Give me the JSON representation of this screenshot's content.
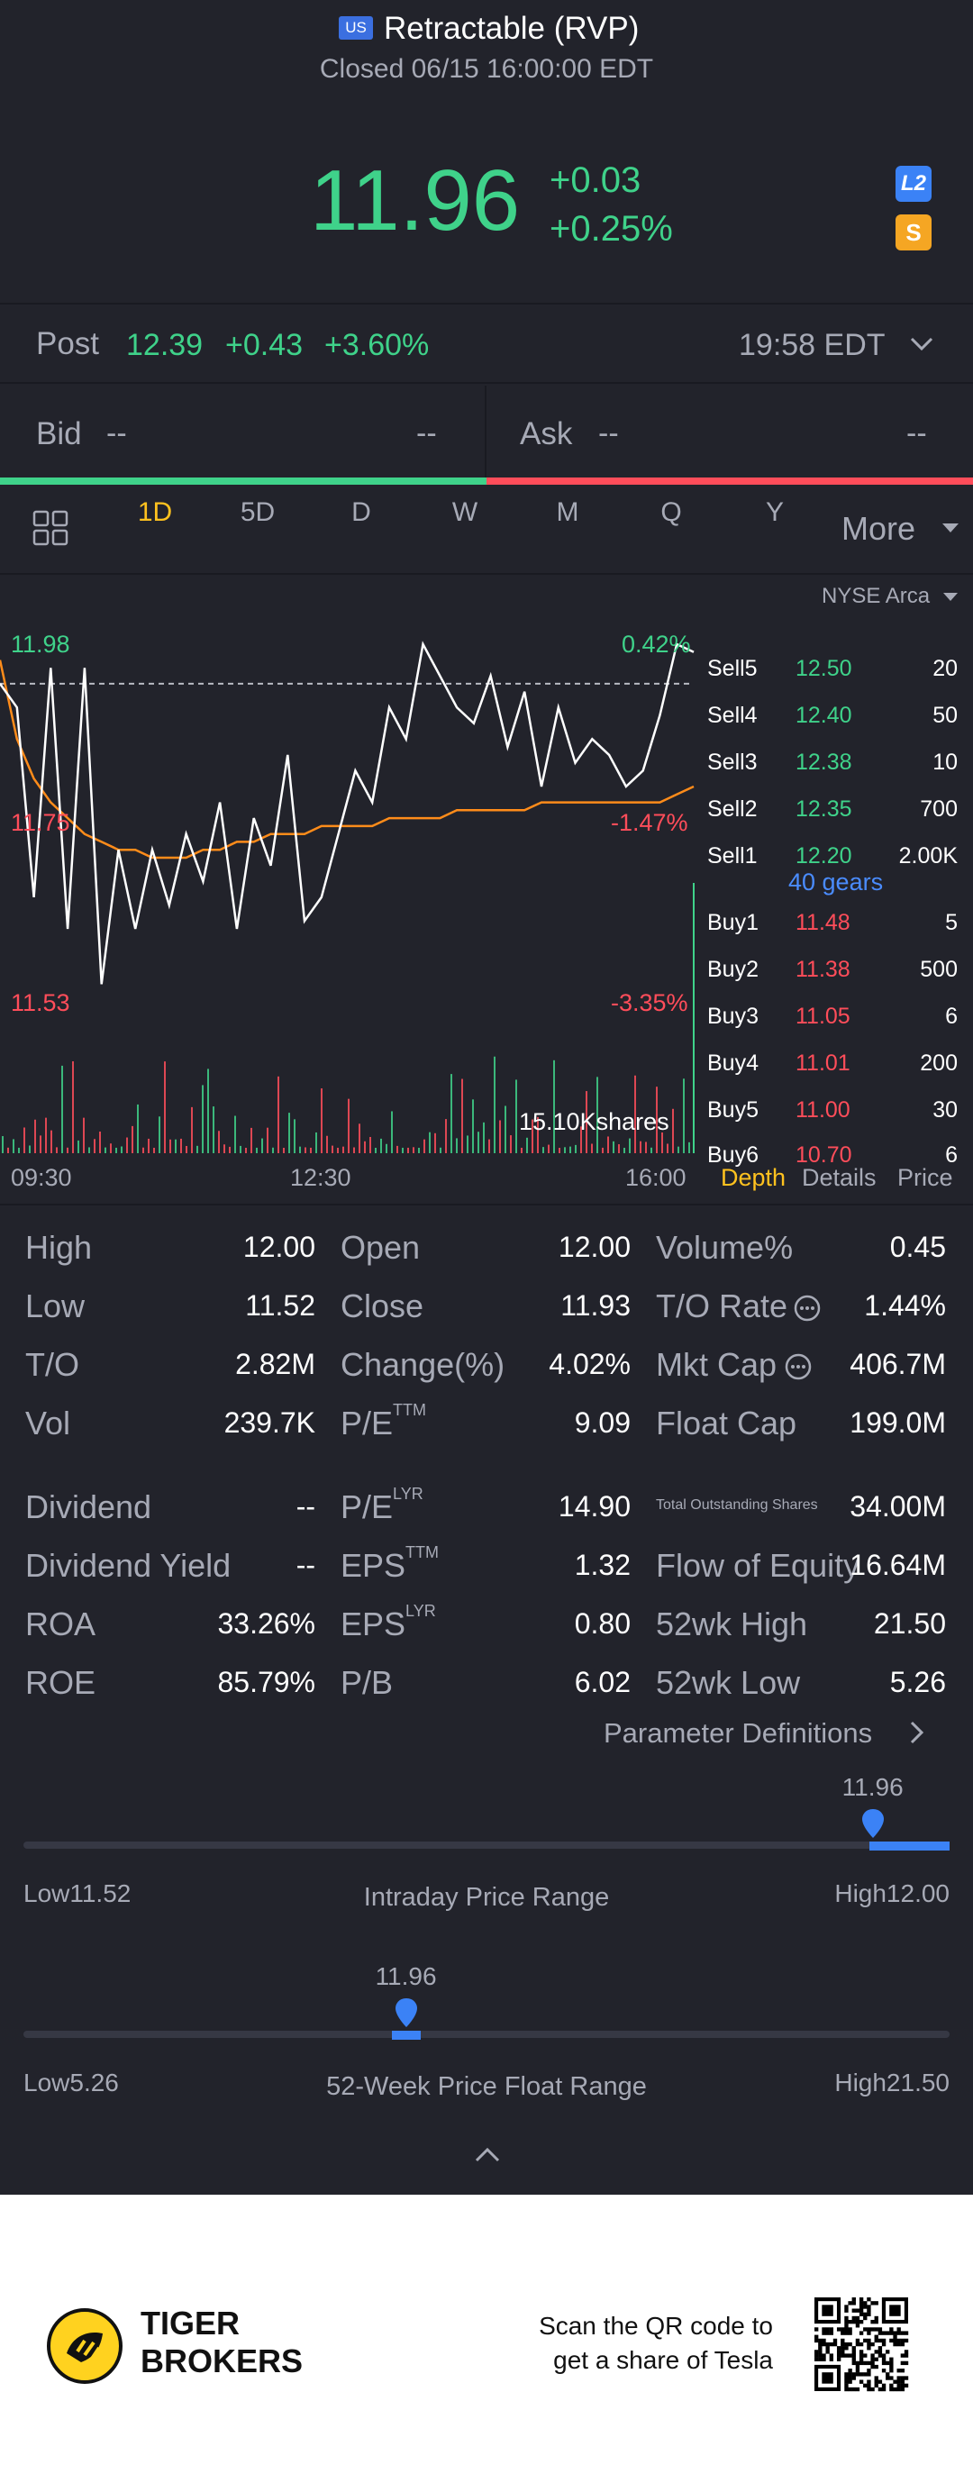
{
  "header": {
    "market_badge": "US",
    "title": "Retractable (RVP)",
    "status": "Closed 06/15 16:00:00 EDT"
  },
  "quote": {
    "price": "11.96",
    "change": "+0.03",
    "change_pct": "+0.25%",
    "l2_badge": "L2",
    "s_badge": "S"
  },
  "post": {
    "label": "Post",
    "price": "12.39",
    "change": "+0.43",
    "change_pct": "+3.60%",
    "time": "19:58 EDT"
  },
  "bid_ask": {
    "bid_label": "Bid",
    "bid_price": "--",
    "bid_size": "--",
    "ask_label": "Ask",
    "ask_price": "--",
    "ask_size": "--"
  },
  "timeframes": [
    "1D",
    "5D",
    "D",
    "W",
    "M",
    "Q",
    "Y"
  ],
  "active_timeframe": "1D",
  "more_label": "More",
  "chart": {
    "price_high": "11.98",
    "price_ref": "11.75",
    "price_low": "11.53",
    "pct_high": "0.42%",
    "pct_ref": "-1.47%",
    "pct_low": "-3.35%",
    "volume_label": "15.10Kshares",
    "time_labels": [
      "09:30",
      "12:30",
      "16:00"
    ]
  },
  "chart_data": {
    "type": "line",
    "title": "",
    "xlabel": "",
    "ylabel": "",
    "ylim": [
      11.53,
      11.98
    ],
    "x_ticks": [
      "09:30",
      "12:30",
      "16:00"
    ],
    "y_ticks_left": [
      "11.98",
      "11.75",
      "11.53"
    ],
    "y_ticks_right": [
      "0.42%",
      "-1.47%",
      "-3.35%"
    ],
    "series": [
      {
        "name": "",
        "color": "#ffffff",
        "values": [
          11.93,
          11.9,
          11.66,
          11.95,
          11.62,
          11.95,
          11.55,
          11.72,
          11.62,
          11.72,
          11.65,
          11.74,
          11.68,
          11.78,
          11.62,
          11.76,
          11.7,
          11.84,
          11.63,
          11.66,
          11.74,
          11.82,
          11.78,
          11.9,
          11.86,
          11.98,
          11.94,
          11.9,
          11.88,
          11.94,
          11.85,
          11.92,
          11.8,
          11.9,
          11.83,
          11.86,
          11.84,
          11.8,
          11.82,
          11.89,
          11.98,
          11.97
        ]
      },
      {
        "name": "",
        "color": "#ff8c1a",
        "values": [
          11.96,
          11.86,
          11.81,
          11.78,
          11.76,
          11.74,
          11.73,
          11.72,
          11.72,
          11.71,
          11.71,
          11.71,
          11.72,
          11.72,
          11.73,
          11.73,
          11.74,
          11.74,
          11.74,
          11.75,
          11.75,
          11.75,
          11.75,
          11.76,
          11.76,
          11.76,
          11.76,
          11.77,
          11.77,
          11.77,
          11.77,
          11.77,
          11.78,
          11.78,
          11.78,
          11.78,
          11.78,
          11.78,
          11.78,
          11.78,
          11.79,
          11.8
        ]
      }
    ],
    "reference_line": 11.93,
    "volume_label": "15.10Kshares"
  },
  "order_book": {
    "exchange": "NYSE Arca",
    "sells": [
      {
        "label": "Sell5",
        "price": "12.50",
        "size": "20"
      },
      {
        "label": "Sell4",
        "price": "12.40",
        "size": "50"
      },
      {
        "label": "Sell3",
        "price": "12.38",
        "size": "10"
      },
      {
        "label": "Sell2",
        "price": "12.35",
        "size": "700"
      },
      {
        "label": "Sell1",
        "price": "12.20",
        "size": "2.00K"
      }
    ],
    "gears": "40 gears",
    "buys": [
      {
        "label": "Buy1",
        "price": "11.48",
        "size": "5"
      },
      {
        "label": "Buy2",
        "price": "11.38",
        "size": "500"
      },
      {
        "label": "Buy3",
        "price": "11.05",
        "size": "6"
      },
      {
        "label": "Buy4",
        "price": "11.01",
        "size": "200"
      },
      {
        "label": "Buy5",
        "price": "11.00",
        "size": "30"
      },
      {
        "label": "Buy6",
        "price": "10.70",
        "size": "6"
      }
    ],
    "tabs": [
      "Depth",
      "Details",
      "Price"
    ]
  },
  "stats": {
    "col1": [
      {
        "label": "High",
        "value": "12.00"
      },
      {
        "label": "Low",
        "value": "11.52"
      },
      {
        "label": "T/O",
        "value": "2.82M"
      },
      {
        "label": "Vol",
        "value": "239.7K"
      },
      {
        "label": "Dividend",
        "value": "--"
      },
      {
        "label": "Dividend Yield",
        "value": "--"
      },
      {
        "label": "ROA",
        "value": "33.26%"
      },
      {
        "label": "ROE",
        "value": "85.79%"
      }
    ],
    "col2": [
      {
        "label": "Open",
        "sup": "",
        "value": "12.00"
      },
      {
        "label": "Close",
        "sup": "",
        "value": "11.93"
      },
      {
        "label": "Change(%)",
        "sup": "",
        "value": "4.02%"
      },
      {
        "label": "P/E",
        "sup": "TTM",
        "value": "9.09"
      },
      {
        "label": "P/E",
        "sup": "LYR",
        "value": "14.90"
      },
      {
        "label": "EPS",
        "sup": "TTM",
        "value": "1.32"
      },
      {
        "label": "EPS",
        "sup": "LYR",
        "value": "0.80"
      },
      {
        "label": "P/B",
        "sup": "",
        "value": "6.02"
      }
    ],
    "col3": [
      {
        "label": "Volume%",
        "value": "0.45"
      },
      {
        "label": "T/O Rate",
        "value": "1.44%"
      },
      {
        "label": "Mkt Cap",
        "value": "406.7M"
      },
      {
        "label": "Float Cap",
        "value": "199.0M"
      },
      {
        "label": "Total Outstanding Shares",
        "value": "34.00M"
      },
      {
        "label": "Flow of Equity",
        "value": "16.64M"
      },
      {
        "label": "52wk High",
        "value": "21.50"
      },
      {
        "label": "52wk Low",
        "value": "5.26"
      }
    ],
    "param_link": "Parameter Definitions"
  },
  "ranges": {
    "intraday": {
      "title": "Intraday Price Range",
      "low": "Low11.52",
      "high": "High12.00",
      "marker": "11.96",
      "position_fraction": 0.917
    },
    "week52": {
      "title": "52-Week Price Float Range",
      "low": "Low5.26",
      "high": "High21.50",
      "marker": "11.96",
      "position_fraction": 0.413
    }
  },
  "footer": {
    "brand_line1": "TIGER",
    "brand_line2": "BROKERS",
    "scan_line1": "Scan the QR code to",
    "scan_line2": "get a share of Tesla"
  },
  "colors": {
    "background": "#22232b",
    "up": "#3fd28a",
    "down": "#ff4d5a",
    "accent": "#3b82f6",
    "active_tab": "#ffc21f"
  }
}
